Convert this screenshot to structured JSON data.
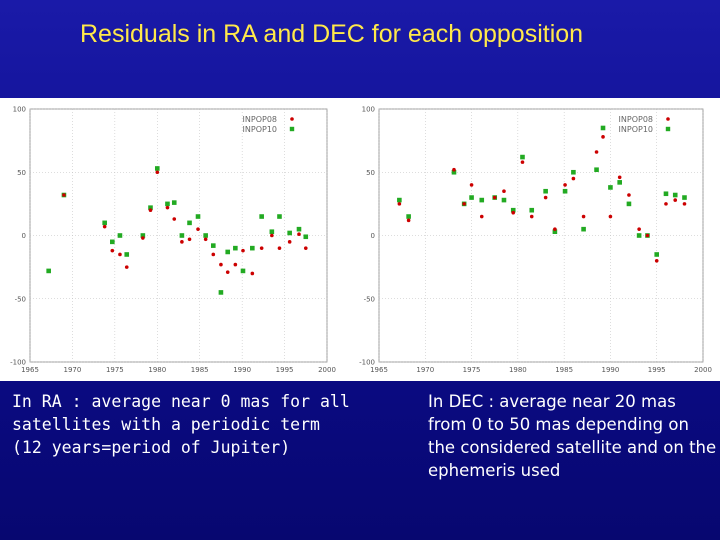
{
  "slide": {
    "title": "Residuals in RA and DEC for each opposition",
    "caption_left": "In RA : average near 0 mas for all satellites with a periodic term (12 years=period of Jupiter)",
    "caption_right": "In DEC : average near 20 mas from 0 to 50 mas depending on the considered satellite and on the ephemeris used"
  },
  "colors": {
    "background": "#0c0c8a",
    "title": "#ffe94a",
    "caption": "#ffffff",
    "series_inpops": "#cc0000",
    "series_inpop10": "#22aa22"
  },
  "chart_data": [
    {
      "type": "scatter",
      "title": "",
      "xlabel": "",
      "ylabel": "",
      "xlim": [
        1965,
        2000
      ],
      "ylim": [
        -100,
        100
      ],
      "xticks": [
        1965,
        1970,
        1975,
        1980,
        1985,
        1990,
        1995,
        2000
      ],
      "yticks": [
        100,
        50,
        0,
        -50,
        -100
      ],
      "grid": true,
      "legend_position": "top-right",
      "series": [
        {
          "name": "INPOP08",
          "marker": "dot",
          "color": "#cc0000",
          "points": [
            [
              1969.0,
              32
            ],
            [
              1973.8,
              7
            ],
            [
              1974.7,
              -12
            ],
            [
              1975.6,
              -15
            ],
            [
              1976.4,
              -25
            ],
            [
              1978.3,
              -2
            ],
            [
              1979.2,
              20
            ],
            [
              1980.0,
              50
            ],
            [
              1981.2,
              22
            ],
            [
              1982.0,
              13
            ],
            [
              1982.9,
              -5
            ],
            [
              1983.8,
              -3
            ],
            [
              1984.8,
              5
            ],
            [
              1985.7,
              -3
            ],
            [
              1986.6,
              -15
            ],
            [
              1987.5,
              -23
            ],
            [
              1988.3,
              -29
            ],
            [
              1989.2,
              -23
            ],
            [
              1990.1,
              -12
            ],
            [
              1991.2,
              -30
            ],
            [
              1992.3,
              -10
            ],
            [
              1993.5,
              0
            ],
            [
              1994.4,
              -10
            ],
            [
              1995.6,
              -5
            ],
            [
              1996.7,
              1
            ],
            [
              1997.5,
              -10
            ]
          ]
        },
        {
          "name": "INPOP10",
          "marker": "square",
          "color": "#22aa22",
          "points": [
            [
              1967.2,
              -28
            ],
            [
              1969.0,
              32
            ],
            [
              1973.8,
              10
            ],
            [
              1974.7,
              -5
            ],
            [
              1975.6,
              0
            ],
            [
              1976.4,
              -15
            ],
            [
              1978.3,
              0
            ],
            [
              1979.2,
              22
            ],
            [
              1980.0,
              53
            ],
            [
              1981.2,
              25
            ],
            [
              1982.0,
              26
            ],
            [
              1982.9,
              0
            ],
            [
              1983.8,
              10
            ],
            [
              1984.8,
              15
            ],
            [
              1985.7,
              0
            ],
            [
              1986.6,
              -8
            ],
            [
              1987.5,
              -45
            ],
            [
              1988.3,
              -13
            ],
            [
              1989.2,
              -10
            ],
            [
              1990.1,
              -28
            ],
            [
              1991.2,
              -10
            ],
            [
              1992.3,
              15
            ],
            [
              1993.5,
              3
            ],
            [
              1994.4,
              15
            ],
            [
              1995.6,
              2
            ],
            [
              1996.7,
              5
            ],
            [
              1997.5,
              -1
            ]
          ]
        }
      ]
    },
    {
      "type": "scatter",
      "title": "",
      "xlabel": "",
      "ylabel": "",
      "xlim": [
        1965,
        2000
      ],
      "ylim": [
        -100,
        100
      ],
      "xticks": [
        1965,
        1970,
        1975,
        1980,
        1985,
        1990,
        1995,
        2000
      ],
      "yticks": [
        100,
        50,
        0,
        -50,
        -100
      ],
      "grid": true,
      "legend_position": "top-right",
      "series": [
        {
          "name": "INPOP08",
          "marker": "dot",
          "color": "#cc0000",
          "points": [
            [
              1967.2,
              25
            ],
            [
              1968.2,
              12
            ],
            [
              1973.1,
              52
            ],
            [
              1974.2,
              25
            ],
            [
              1975.0,
              40
            ],
            [
              1976.1,
              15
            ],
            [
              1977.5,
              30
            ],
            [
              1978.5,
              35
            ],
            [
              1979.5,
              18
            ],
            [
              1980.5,
              58
            ],
            [
              1981.5,
              15
            ],
            [
              1983.0,
              30
            ],
            [
              1984.0,
              5
            ],
            [
              1985.1,
              40
            ],
            [
              1986.0,
              45
            ],
            [
              1987.1,
              15
            ],
            [
              1988.5,
              66
            ],
            [
              1989.2,
              78
            ],
            [
              1990.0,
              15
            ],
            [
              1991.0,
              46
            ],
            [
              1992.0,
              32
            ],
            [
              1993.1,
              5
            ],
            [
              1994.0,
              0
            ],
            [
              1995.0,
              -20
            ],
            [
              1996.0,
              25
            ],
            [
              1997.0,
              28
            ],
            [
              1998.0,
              25
            ]
          ]
        },
        {
          "name": "INPOP10",
          "marker": "square",
          "color": "#22aa22",
          "points": [
            [
              1967.2,
              28
            ],
            [
              1968.2,
              15
            ],
            [
              1973.1,
              50
            ],
            [
              1974.2,
              25
            ],
            [
              1975.0,
              30
            ],
            [
              1976.1,
              28
            ],
            [
              1977.5,
              30
            ],
            [
              1978.5,
              28
            ],
            [
              1979.5,
              20
            ],
            [
              1980.5,
              62
            ],
            [
              1981.5,
              20
            ],
            [
              1983.0,
              35
            ],
            [
              1984.0,
              3
            ],
            [
              1985.1,
              35
            ],
            [
              1986.0,
              50
            ],
            [
              1987.1,
              5
            ],
            [
              1988.5,
              52
            ],
            [
              1989.2,
              85
            ],
            [
              1990.0,
              38
            ],
            [
              1991.0,
              42
            ],
            [
              1992.0,
              25
            ],
            [
              1993.1,
              0
            ],
            [
              1994.0,
              0
            ],
            [
              1995.0,
              -15
            ],
            [
              1996.0,
              33
            ],
            [
              1997.0,
              32
            ],
            [
              1998.0,
              30
            ]
          ]
        }
      ]
    }
  ]
}
